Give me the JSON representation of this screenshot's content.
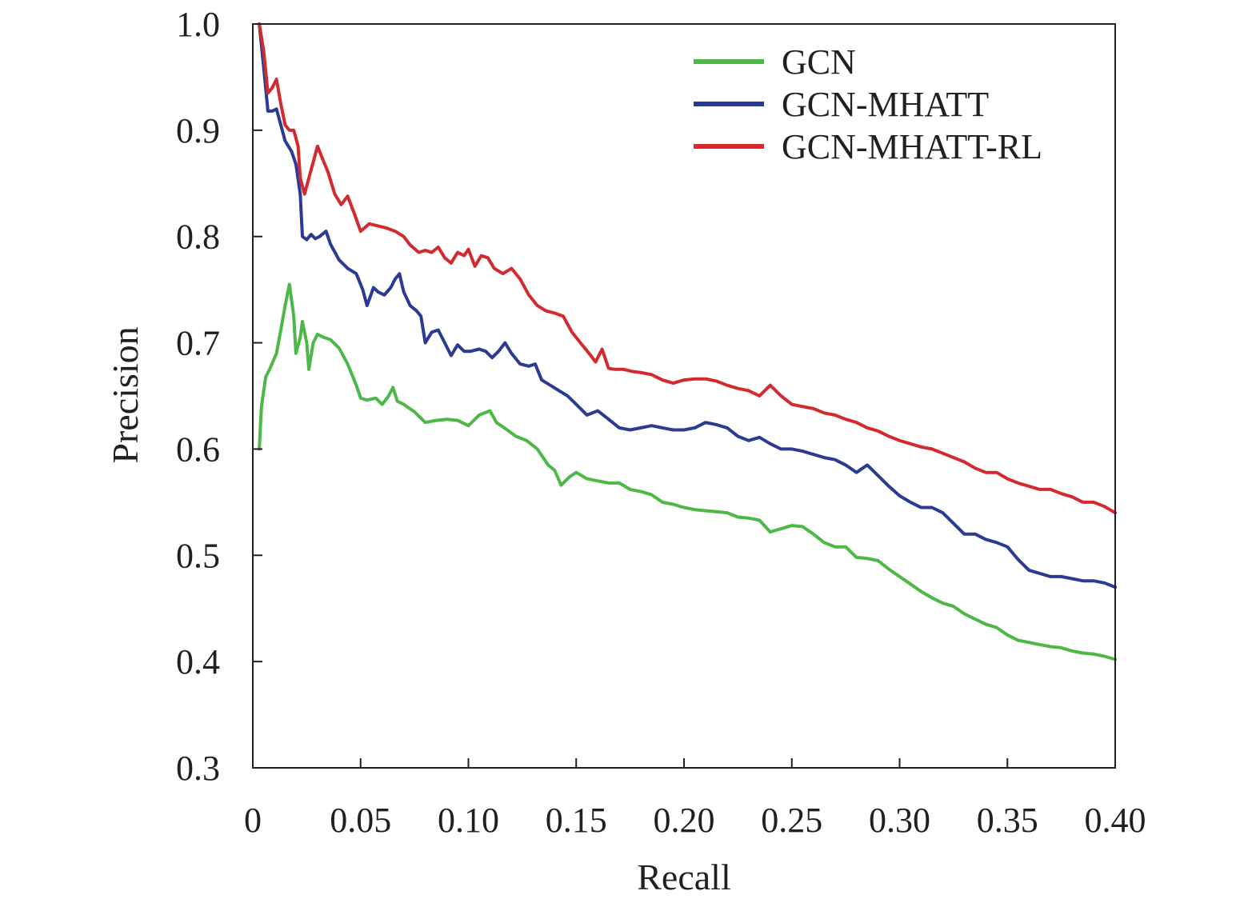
{
  "chart_data": {
    "type": "line",
    "xlabel": "Recall",
    "ylabel": "Precision",
    "xlim": [
      0,
      0.4
    ],
    "ylim": [
      0.3,
      1.0
    ],
    "xticks": [
      "0",
      "0.05",
      "0.10",
      "0.15",
      "0.20",
      "0.25",
      "0.30",
      "0.35",
      "0.40"
    ],
    "yticks": [
      "0.3",
      "0.4",
      "0.5",
      "0.6",
      "0.7",
      "0.8",
      "0.9",
      "1.0"
    ],
    "legend_position": "top-right",
    "grid": false,
    "series": [
      {
        "name": "GCN",
        "color": "#4db848",
        "x": [
          0.003,
          0.004,
          0.006,
          0.008,
          0.011,
          0.013,
          0.015,
          0.017,
          0.019,
          0.02,
          0.022,
          0.023,
          0.025,
          0.026,
          0.028,
          0.03,
          0.033,
          0.036,
          0.04,
          0.044,
          0.048,
          0.05,
          0.053,
          0.057,
          0.06,
          0.063,
          0.065,
          0.067,
          0.07,
          0.075,
          0.08,
          0.085,
          0.09,
          0.095,
          0.1,
          0.105,
          0.11,
          0.113,
          0.118,
          0.122,
          0.127,
          0.132,
          0.137,
          0.14,
          0.143,
          0.147,
          0.15,
          0.155,
          0.16,
          0.165,
          0.17,
          0.175,
          0.18,
          0.185,
          0.19,
          0.195,
          0.2,
          0.205,
          0.21,
          0.215,
          0.22,
          0.225,
          0.23,
          0.235,
          0.24,
          0.245,
          0.25,
          0.255,
          0.26,
          0.265,
          0.27,
          0.275,
          0.28,
          0.285,
          0.29,
          0.295,
          0.3,
          0.305,
          0.31,
          0.315,
          0.32,
          0.325,
          0.33,
          0.335,
          0.34,
          0.345,
          0.35,
          0.355,
          0.36,
          0.365,
          0.37,
          0.375,
          0.38,
          0.385,
          0.39,
          0.395,
          0.4
        ],
        "y": [
          0.6,
          0.64,
          0.668,
          0.676,
          0.69,
          0.712,
          0.735,
          0.755,
          0.725,
          0.69,
          0.705,
          0.72,
          0.7,
          0.675,
          0.7,
          0.708,
          0.705,
          0.703,
          0.695,
          0.68,
          0.66,
          0.648,
          0.646,
          0.648,
          0.642,
          0.65,
          0.658,
          0.645,
          0.642,
          0.635,
          0.625,
          0.627,
          0.628,
          0.627,
          0.622,
          0.632,
          0.636,
          0.625,
          0.618,
          0.612,
          0.608,
          0.6,
          0.585,
          0.58,
          0.566,
          0.574,
          0.578,
          0.572,
          0.57,
          0.568,
          0.568,
          0.562,
          0.56,
          0.557,
          0.55,
          0.548,
          0.545,
          0.543,
          0.542,
          0.541,
          0.54,
          0.536,
          0.535,
          0.533,
          0.522,
          0.525,
          0.528,
          0.527,
          0.52,
          0.512,
          0.508,
          0.508,
          0.498,
          0.497,
          0.495,
          0.487,
          0.48,
          0.473,
          0.466,
          0.46,
          0.455,
          0.452,
          0.445,
          0.44,
          0.435,
          0.432,
          0.425,
          0.42,
          0.418,
          0.416,
          0.414,
          0.413,
          0.41,
          0.408,
          0.407,
          0.405,
          0.402
        ]
      },
      {
        "name": "GCN-MHATT",
        "color": "#2b3b94",
        "x": [
          0.003,
          0.005,
          0.007,
          0.009,
          0.011,
          0.013,
          0.015,
          0.018,
          0.02,
          0.022,
          0.023,
          0.025,
          0.027,
          0.029,
          0.031,
          0.034,
          0.036,
          0.04,
          0.044,
          0.048,
          0.051,
          0.053,
          0.056,
          0.058,
          0.061,
          0.064,
          0.066,
          0.068,
          0.07,
          0.073,
          0.076,
          0.078,
          0.08,
          0.083,
          0.086,
          0.089,
          0.092,
          0.095,
          0.098,
          0.101,
          0.105,
          0.108,
          0.111,
          0.114,
          0.117,
          0.12,
          0.124,
          0.128,
          0.131,
          0.134,
          0.138,
          0.142,
          0.146,
          0.15,
          0.155,
          0.16,
          0.165,
          0.17,
          0.175,
          0.18,
          0.185,
          0.19,
          0.195,
          0.2,
          0.205,
          0.21,
          0.215,
          0.22,
          0.225,
          0.23,
          0.235,
          0.24,
          0.245,
          0.25,
          0.255,
          0.26,
          0.265,
          0.27,
          0.275,
          0.28,
          0.285,
          0.29,
          0.295,
          0.3,
          0.305,
          0.31,
          0.315,
          0.32,
          0.325,
          0.33,
          0.335,
          0.34,
          0.345,
          0.35,
          0.355,
          0.36,
          0.365,
          0.37,
          0.375,
          0.38,
          0.385,
          0.39,
          0.395,
          0.4
        ],
        "y": [
          1.0,
          0.96,
          0.918,
          0.918,
          0.92,
          0.905,
          0.89,
          0.88,
          0.868,
          0.84,
          0.8,
          0.797,
          0.802,
          0.798,
          0.8,
          0.805,
          0.793,
          0.778,
          0.77,
          0.765,
          0.75,
          0.735,
          0.752,
          0.748,
          0.745,
          0.752,
          0.76,
          0.765,
          0.748,
          0.735,
          0.73,
          0.725,
          0.7,
          0.71,
          0.712,
          0.7,
          0.688,
          0.698,
          0.692,
          0.692,
          0.694,
          0.692,
          0.686,
          0.692,
          0.7,
          0.69,
          0.68,
          0.678,
          0.68,
          0.665,
          0.66,
          0.655,
          0.65,
          0.642,
          0.632,
          0.636,
          0.628,
          0.62,
          0.618,
          0.62,
          0.622,
          0.62,
          0.618,
          0.618,
          0.62,
          0.625,
          0.623,
          0.62,
          0.612,
          0.608,
          0.611,
          0.605,
          0.6,
          0.6,
          0.598,
          0.595,
          0.592,
          0.59,
          0.585,
          0.578,
          0.585,
          0.575,
          0.565,
          0.556,
          0.55,
          0.545,
          0.545,
          0.54,
          0.53,
          0.52,
          0.52,
          0.515,
          0.512,
          0.508,
          0.496,
          0.486,
          0.483,
          0.48,
          0.48,
          0.478,
          0.476,
          0.476,
          0.474,
          0.47
        ]
      },
      {
        "name": "GCN-MHATT-RL",
        "color": "#d42a2f",
        "x": [
          0.003,
          0.005,
          0.007,
          0.009,
          0.011,
          0.013,
          0.015,
          0.017,
          0.019,
          0.021,
          0.022,
          0.024,
          0.026,
          0.028,
          0.03,
          0.032,
          0.035,
          0.038,
          0.041,
          0.044,
          0.047,
          0.05,
          0.054,
          0.058,
          0.062,
          0.066,
          0.07,
          0.073,
          0.077,
          0.08,
          0.083,
          0.086,
          0.089,
          0.092,
          0.095,
          0.098,
          0.1,
          0.103,
          0.106,
          0.109,
          0.112,
          0.116,
          0.12,
          0.124,
          0.128,
          0.132,
          0.136,
          0.14,
          0.144,
          0.148,
          0.152,
          0.156,
          0.159,
          0.162,
          0.165,
          0.168,
          0.172,
          0.176,
          0.18,
          0.185,
          0.19,
          0.195,
          0.2,
          0.205,
          0.21,
          0.215,
          0.22,
          0.225,
          0.23,
          0.235,
          0.24,
          0.245,
          0.25,
          0.255,
          0.26,
          0.265,
          0.27,
          0.275,
          0.28,
          0.285,
          0.29,
          0.295,
          0.3,
          0.305,
          0.31,
          0.315,
          0.32,
          0.325,
          0.33,
          0.335,
          0.34,
          0.345,
          0.35,
          0.355,
          0.36,
          0.365,
          0.37,
          0.375,
          0.38,
          0.385,
          0.39,
          0.395,
          0.4
        ],
        "y": [
          1.0,
          0.975,
          0.935,
          0.94,
          0.948,
          0.925,
          0.905,
          0.9,
          0.9,
          0.885,
          0.855,
          0.84,
          0.855,
          0.87,
          0.885,
          0.875,
          0.86,
          0.84,
          0.83,
          0.838,
          0.822,
          0.805,
          0.812,
          0.81,
          0.808,
          0.805,
          0.8,
          0.792,
          0.785,
          0.787,
          0.785,
          0.79,
          0.78,
          0.775,
          0.785,
          0.782,
          0.788,
          0.772,
          0.782,
          0.78,
          0.77,
          0.765,
          0.77,
          0.76,
          0.745,
          0.735,
          0.73,
          0.728,
          0.725,
          0.71,
          0.7,
          0.69,
          0.682,
          0.694,
          0.676,
          0.675,
          0.675,
          0.673,
          0.672,
          0.67,
          0.665,
          0.662,
          0.665,
          0.666,
          0.666,
          0.664,
          0.66,
          0.657,
          0.655,
          0.65,
          0.66,
          0.65,
          0.642,
          0.64,
          0.638,
          0.634,
          0.632,
          0.628,
          0.625,
          0.62,
          0.617,
          0.612,
          0.608,
          0.605,
          0.602,
          0.6,
          0.596,
          0.592,
          0.588,
          0.582,
          0.578,
          0.578,
          0.572,
          0.568,
          0.565,
          0.562,
          0.562,
          0.558,
          0.555,
          0.55,
          0.55,
          0.546,
          0.54
        ]
      }
    ]
  }
}
